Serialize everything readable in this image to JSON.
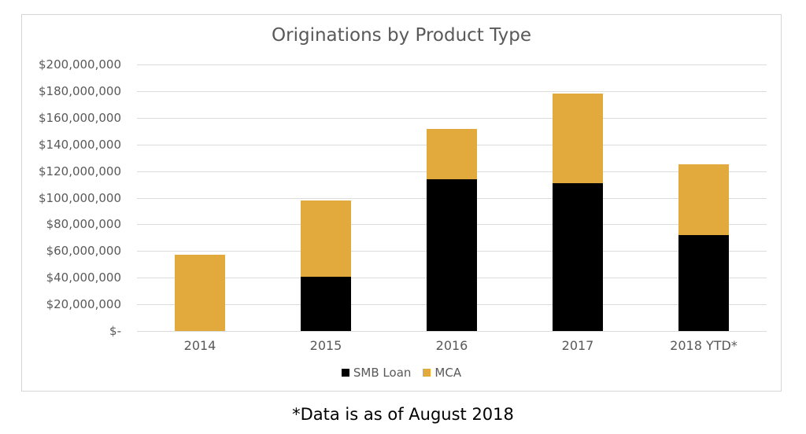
{
  "footnote": "*Data is as of August 2018",
  "colors": {
    "text_gray": "#595959",
    "gridline": "#dcdcdc",
    "frame_border": "#d5d5d5",
    "smb_loan": "#000000",
    "mca": "#e2a93d"
  },
  "chart_data": {
    "type": "bar",
    "stacked": true,
    "title": "Originations by Product Type",
    "categories": [
      "2014",
      "2015",
      "2016",
      "2017",
      "2018 YTD*"
    ],
    "series": [
      {
        "name": "SMB Loan",
        "color": "#000000",
        "values": [
          0,
          41000000,
          114000000,
          111000000,
          72000000
        ]
      },
      {
        "name": "MCA",
        "color": "#e2a93d",
        "values": [
          57000000,
          57000000,
          37500000,
          67000000,
          53000000
        ]
      }
    ],
    "y_axis": {
      "min": 0,
      "max": 200000000,
      "step": 20000000,
      "tick_labels_bottom_to_top": [
        "$-",
        "$20,000,000",
        "$40,000,000",
        "$60,000,000",
        "$80,000,000",
        "$100,000,000",
        "$120,000,000",
        "$140,000,000",
        "$160,000,000",
        "$180,000,000",
        "$200,000,000"
      ]
    },
    "legend_position": "bottom",
    "gridlines": true
  }
}
